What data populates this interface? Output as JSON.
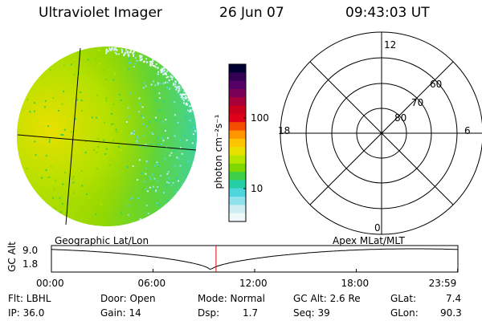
{
  "header": {
    "instrument": "Ultraviolet Imager",
    "date": "26 Jun 07",
    "time": "09:43:03 UT"
  },
  "colorbar": {
    "unit_label": "photon cm⁻²s⁻¹",
    "ticks": [
      "100",
      "10"
    ],
    "colors": [
      "#000033",
      "#330055",
      "#550066",
      "#7a0055",
      "#a8003a",
      "#c8001e",
      "#e0001a",
      "#f54d00",
      "#ff9500",
      "#ffc400",
      "#e8e100",
      "#b6e500",
      "#7fd800",
      "#3fd04a",
      "#25cfa6",
      "#4fd6dd",
      "#8fe1ec",
      "#cdeef3",
      "#f0f7f8"
    ]
  },
  "polar_plot": {
    "mlt_labels": {
      "top": "12",
      "left": "18",
      "right": "6",
      "bottom": "0"
    },
    "lat_labels": [
      "60",
      "70",
      "80"
    ]
  },
  "timeline": {
    "left_label": "Geographic Lat/Lon",
    "right_label": "Apex MLat/MLT",
    "axis_title": "GC Alt",
    "y_ticks": [
      "9.0",
      "1.8"
    ],
    "x_ticks": [
      "00:00",
      "06:00",
      "12:00",
      "18:00",
      "23:59"
    ],
    "current_time_hours": 9.72,
    "marker_color": "#e00000"
  },
  "info": {
    "filter": "Flt: LBHL",
    "ip": "IP: 36.0",
    "door": "Door: Open",
    "gain": "Gain: 14",
    "mode": "Mode: Normal",
    "dsp_label": "Dsp:",
    "dsp_value": "1.7",
    "gc_alt": "GC Alt: 2.6 Re",
    "seq": "Seq: 39",
    "glat_label": "GLat:",
    "glat_value": "7.4",
    "glon_label": "GLon:",
    "glon_value": "90.3"
  }
}
